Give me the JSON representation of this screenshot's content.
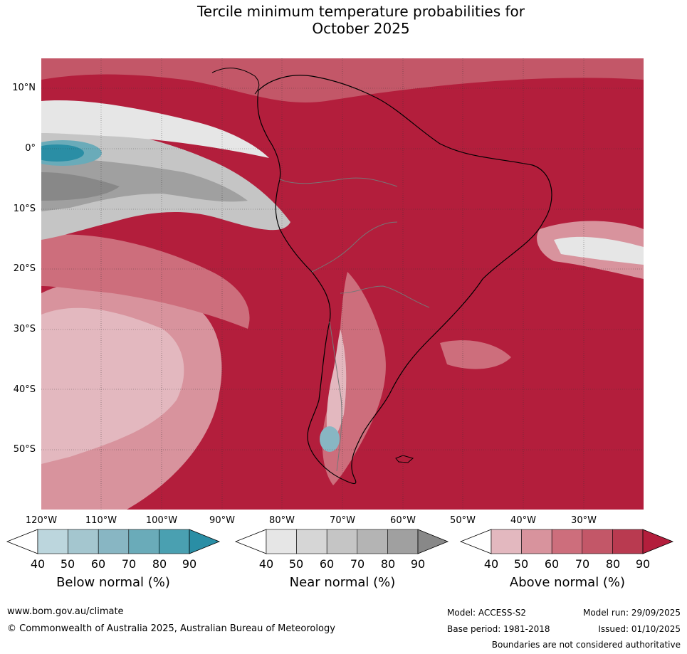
{
  "title": {
    "line1": "Tercile minimum temperature probabilities for",
    "line2": "October 2025"
  },
  "axes": {
    "lat_labels": [
      "10°N",
      "0°",
      "10°S",
      "20°S",
      "30°S",
      "40°S",
      "50°S"
    ],
    "lon_labels": [
      "120°W",
      "110°W",
      "100°W",
      "90°W",
      "80°W",
      "70°W",
      "60°W",
      "50°W",
      "40°W",
      "30°W"
    ]
  },
  "colorbars": [
    {
      "title": "Below normal (%)",
      "ticks": [
        "40",
        "50",
        "60",
        "70",
        "80",
        "90"
      ],
      "colors": [
        "#ffffff",
        "#bcd6dd",
        "#a4c6cf",
        "#88b6c3",
        "#6aabb9",
        "#4aa0b1",
        "#2a8ea5"
      ]
    },
    {
      "title": "Near normal (%)",
      "ticks": [
        "40",
        "50",
        "60",
        "70",
        "80",
        "90"
      ],
      "colors": [
        "#ffffff",
        "#e6e6e6",
        "#d6d6d6",
        "#c5c5c5",
        "#b4b4b4",
        "#a0a0a0",
        "#888888"
      ]
    },
    {
      "title": "Above normal (%)",
      "ticks": [
        "40",
        "50",
        "60",
        "70",
        "80",
        "90"
      ],
      "colors": [
        "#ffffff",
        "#e3b8bf",
        "#d8939d",
        "#cd6e7c",
        "#c35768",
        "#b93a50",
        "#b31e3c"
      ]
    }
  ],
  "footer": {
    "url": "www.bom.gov.au/climate",
    "copyright": "© Commonwealth of Australia 2025, Australian Bureau of Meteorology",
    "model": "Model: ACCESS-S2",
    "model_run": "Model run: 29/09/2025",
    "base_period": "Base period: 1981-2018",
    "issued": "Issued: 01/10/2025",
    "disclaimer": "Boundaries are not considered authoritative"
  }
}
